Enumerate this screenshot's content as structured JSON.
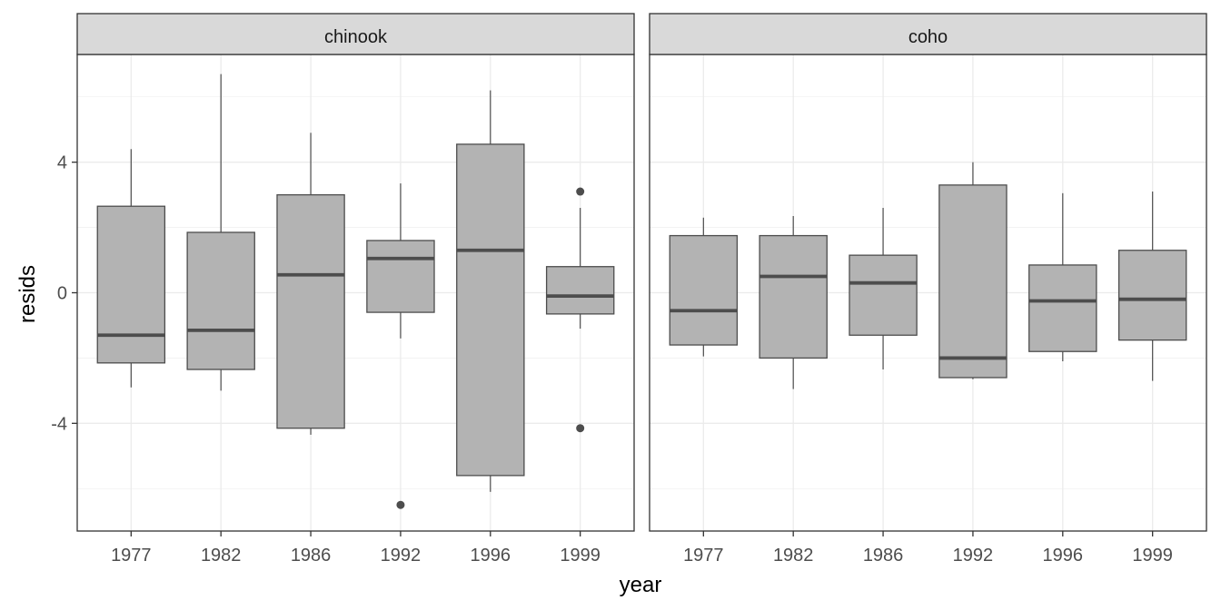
{
  "chart_data": {
    "type": "boxplot",
    "xlabel": "year",
    "ylabel": "resids",
    "categories": [
      "1977",
      "1982",
      "1986",
      "1992",
      "1996",
      "1999"
    ],
    "ylim": [
      -7.3,
      7.3
    ],
    "y_ticks": [
      -4,
      0,
      4
    ],
    "grid": true,
    "box_fill": "#b3b3b3",
    "line_color": "#4d4d4d",
    "panels": [
      {
        "name": "chinook",
        "boxes": [
          {
            "category": "1977",
            "low": -2.9,
            "q1": -2.15,
            "median": -1.3,
            "q3": 2.65,
            "high": 4.4,
            "outliers": []
          },
          {
            "category": "1982",
            "low": -3.0,
            "q1": -2.35,
            "median": -1.15,
            "q3": 1.85,
            "high": 6.7,
            "outliers": []
          },
          {
            "category": "1986",
            "low": -4.35,
            "q1": -4.15,
            "median": 0.55,
            "q3": 3.0,
            "high": 4.9,
            "outliers": []
          },
          {
            "category": "1992",
            "low": -1.4,
            "q1": -0.6,
            "median": 1.05,
            "q3": 1.6,
            "high": 3.35,
            "outliers": [
              -6.5
            ]
          },
          {
            "category": "1996",
            "low": -6.1,
            "q1": -5.6,
            "median": 1.3,
            "q3": 4.55,
            "high": 6.2,
            "outliers": []
          },
          {
            "category": "1999",
            "low": -1.1,
            "q1": -0.65,
            "median": -0.1,
            "q3": 0.8,
            "high": 2.6,
            "outliers": [
              3.1,
              -4.15
            ]
          }
        ]
      },
      {
        "name": "coho",
        "boxes": [
          {
            "category": "1977",
            "low": -1.95,
            "q1": -1.6,
            "median": -0.55,
            "q3": 1.75,
            "high": 2.3,
            "outliers": []
          },
          {
            "category": "1982",
            "low": -2.95,
            "q1": -2.0,
            "median": 0.5,
            "q3": 1.75,
            "high": 2.35,
            "outliers": []
          },
          {
            "category": "1986",
            "low": -2.35,
            "q1": -1.3,
            "median": 0.3,
            "q3": 1.15,
            "high": 2.6,
            "outliers": []
          },
          {
            "category": "1992",
            "low": -2.65,
            "q1": -2.6,
            "median": -2.0,
            "q3": 3.3,
            "high": 4.0,
            "outliers": []
          },
          {
            "category": "1996",
            "low": -2.1,
            "q1": -1.8,
            "median": -0.25,
            "q3": 0.85,
            "high": 3.05,
            "outliers": []
          },
          {
            "category": "1999",
            "low": -2.7,
            "q1": -1.45,
            "median": -0.2,
            "q3": 1.3,
            "high": 3.1,
            "outliers": []
          }
        ]
      }
    ]
  }
}
